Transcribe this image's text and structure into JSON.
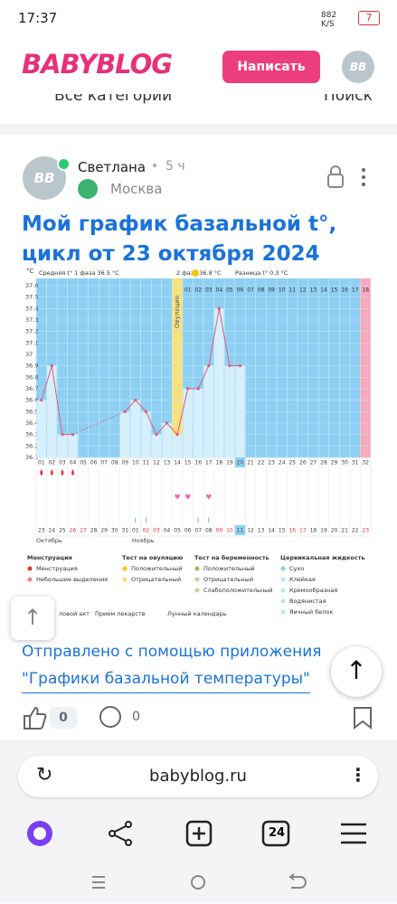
{
  "status_bar": {
    "time": "17:37",
    "speed": "882 K/S",
    "battery": "7"
  },
  "header": {
    "logo": "BABYBLOG",
    "button": "Написать",
    "avatar": "BB"
  },
  "nav_row": {
    "categories": "Все категории",
    "search": "Поиск"
  },
  "post": {
    "avatar": "BB",
    "author": "Светлана",
    "dot": "•",
    "time": "5 ч",
    "location": "Москва",
    "title": "Мой график базальной t°, цикл от 23 октября 2024",
    "footer_line1": "Отправлено с помощью приложения",
    "footer_line2": "\"Графики базальной температуры\"",
    "likes": 0,
    "comments": 0
  },
  "chart_data": {
    "type": "line",
    "unit": "°C",
    "summary": [
      "Средняя t° 1 фаза 36.5 °C",
      "2 фаза 36.8 °C",
      "Разница t° 0.3 °C"
    ],
    "ovulation_label": "Овуляция",
    "categories": [
      "01",
      "02",
      "03",
      "04",
      "05",
      "06",
      "07",
      "08",
      "09",
      "10",
      "11",
      "12",
      "13",
      "14",
      "15",
      "16",
      "17",
      "18",
      "19",
      "20",
      "21",
      "22",
      "23",
      "24",
      "25",
      "26",
      "27",
      "28",
      "29",
      "30",
      "31",
      "32"
    ],
    "phase2_days": [
      "01",
      "02",
      "03",
      "04",
      "05",
      "06",
      "07",
      "08",
      "09",
      "10",
      "11",
      "12",
      "13",
      "14",
      "15",
      "16",
      "17",
      "18"
    ],
    "dates": [
      "23",
      "24",
      "25",
      "26",
      "27",
      "28",
      "29",
      "30",
      "31",
      "01",
      "02",
      "03",
      "04",
      "05",
      "06",
      "07",
      "08",
      "09",
      "10",
      "11",
      "12",
      "13",
      "14",
      "15",
      "16",
      "17",
      "18",
      "19",
      "20",
      "21",
      "22",
      "23"
    ],
    "months": [
      "Октябрь",
      "Ноябрь"
    ],
    "values": [
      36.6,
      36.9,
      36.3,
      36.3,
      null,
      null,
      null,
      null,
      36.5,
      36.6,
      36.5,
      36.3,
      36.4,
      36.3,
      36.7,
      36.7,
      36.9,
      37.4,
      36.9,
      36.9,
      null,
      null,
      null,
      null,
      null,
      null,
      null,
      null,
      null,
      null,
      null,
      null
    ],
    "color": "#e05a7a",
    "ylim": [
      36.1,
      37.6
    ],
    "yticks": [
      36.1,
      36.2,
      36.3,
      36.4,
      36.5,
      36.6,
      36.7,
      36.8,
      36.9,
      37,
      37.1,
      37.2,
      37.3,
      37.4,
      37.5,
      37.6
    ],
    "legend": [
      {
        "title": "Менструация",
        "items": [
          "Менструация",
          "Небольшие выделения"
        ]
      },
      {
        "title": "Тест на овуляцию",
        "items": [
          "Положительный",
          "Отрицательный"
        ]
      },
      {
        "title": "Тест на беременность",
        "items": [
          "Положительный",
          "Отрицательный",
          "Слабоположительный"
        ]
      },
      {
        "title": "Цервикальная жидкость",
        "items": [
          "Сухо",
          "Клейкая",
          "Кремообразная",
          "Водянистая",
          "Яичный белок"
        ]
      }
    ],
    "extra_legend": [
      "ловой акт",
      "Прием лекарств",
      "Лунный календарь"
    ]
  },
  "browser": {
    "url": "babyblog.ru",
    "tabs": 24
  }
}
